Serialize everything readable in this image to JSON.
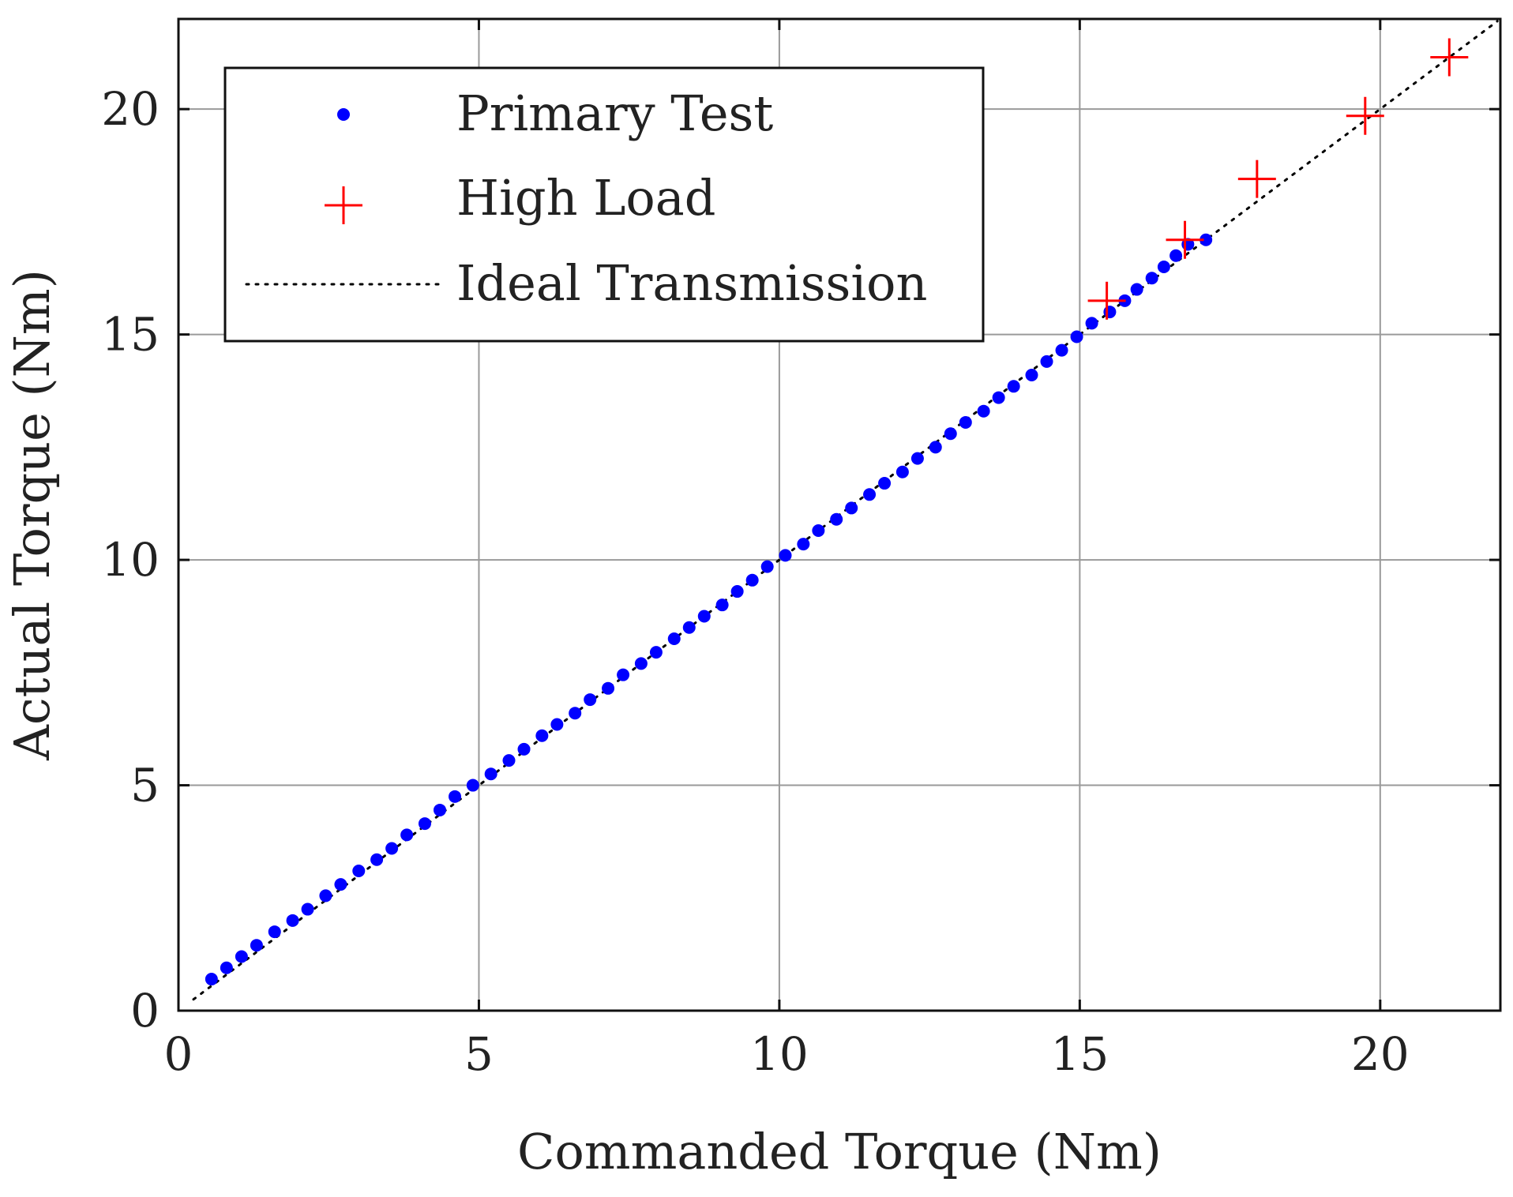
{
  "chart_data": {
    "type": "scatter",
    "title": "",
    "xlabel": "Commanded Torque (Nm)",
    "ylabel": "Actual Torque (Nm)",
    "xlim": [
      0,
      22
    ],
    "ylim": [
      0,
      22
    ],
    "xticks": [
      0,
      5,
      10,
      15,
      20
    ],
    "yticks": [
      0,
      5,
      10,
      15,
      20
    ],
    "xtick_labels": [
      "0",
      "5",
      "10",
      "15",
      "20"
    ],
    "ytick_labels": [
      "0",
      "5",
      "10",
      "15",
      "20"
    ],
    "grid": true,
    "legend_position": "top-left",
    "series": [
      {
        "name": "Primary Test",
        "marker": "dot",
        "color": "#0000ff",
        "x": [
          0.55,
          0.8,
          1.05,
          1.3,
          1.6,
          1.9,
          2.15,
          2.45,
          2.7,
          3.0,
          3.3,
          3.55,
          3.8,
          4.1,
          4.35,
          4.6,
          4.9,
          5.2,
          5.5,
          5.75,
          6.05,
          6.3,
          6.6,
          6.85,
          7.15,
          7.4,
          7.7,
          7.95,
          8.25,
          8.5,
          8.75,
          9.05,
          9.3,
          9.55,
          9.8,
          10.1,
          10.4,
          10.65,
          10.95,
          11.2,
          11.5,
          11.75,
          12.05,
          12.3,
          12.6,
          12.85,
          13.1,
          13.4,
          13.65,
          13.9,
          14.2,
          14.45,
          14.7,
          14.95,
          15.2,
          15.5,
          15.75,
          15.95,
          16.2,
          16.4,
          16.6,
          16.8,
          17.1
        ],
        "y": [
          0.7,
          0.95,
          1.2,
          1.45,
          1.75,
          2.0,
          2.25,
          2.55,
          2.8,
          3.1,
          3.35,
          3.6,
          3.9,
          4.15,
          4.45,
          4.75,
          5.0,
          5.25,
          5.55,
          5.8,
          6.1,
          6.35,
          6.6,
          6.9,
          7.15,
          7.45,
          7.7,
          7.95,
          8.25,
          8.5,
          8.75,
          9.0,
          9.3,
          9.55,
          9.85,
          10.1,
          10.35,
          10.65,
          10.9,
          11.15,
          11.45,
          11.7,
          11.95,
          12.25,
          12.5,
          12.8,
          13.05,
          13.3,
          13.6,
          13.85,
          14.1,
          14.4,
          14.65,
          14.95,
          15.25,
          15.5,
          15.75,
          16.0,
          16.25,
          16.5,
          16.75,
          17.0,
          17.1
        ]
      },
      {
        "name": "High Load",
        "marker": "plus",
        "color": "#ff0000",
        "x": [
          15.45,
          16.75,
          17.95,
          19.75,
          21.15
        ],
        "y": [
          15.75,
          17.1,
          18.45,
          19.85,
          21.15
        ]
      },
      {
        "name": "Ideal Transmission",
        "style": "dotted-line",
        "color": "#000000",
        "x": [
          0.25,
          21.95
        ],
        "y": [
          0.25,
          21.95
        ]
      }
    ]
  }
}
